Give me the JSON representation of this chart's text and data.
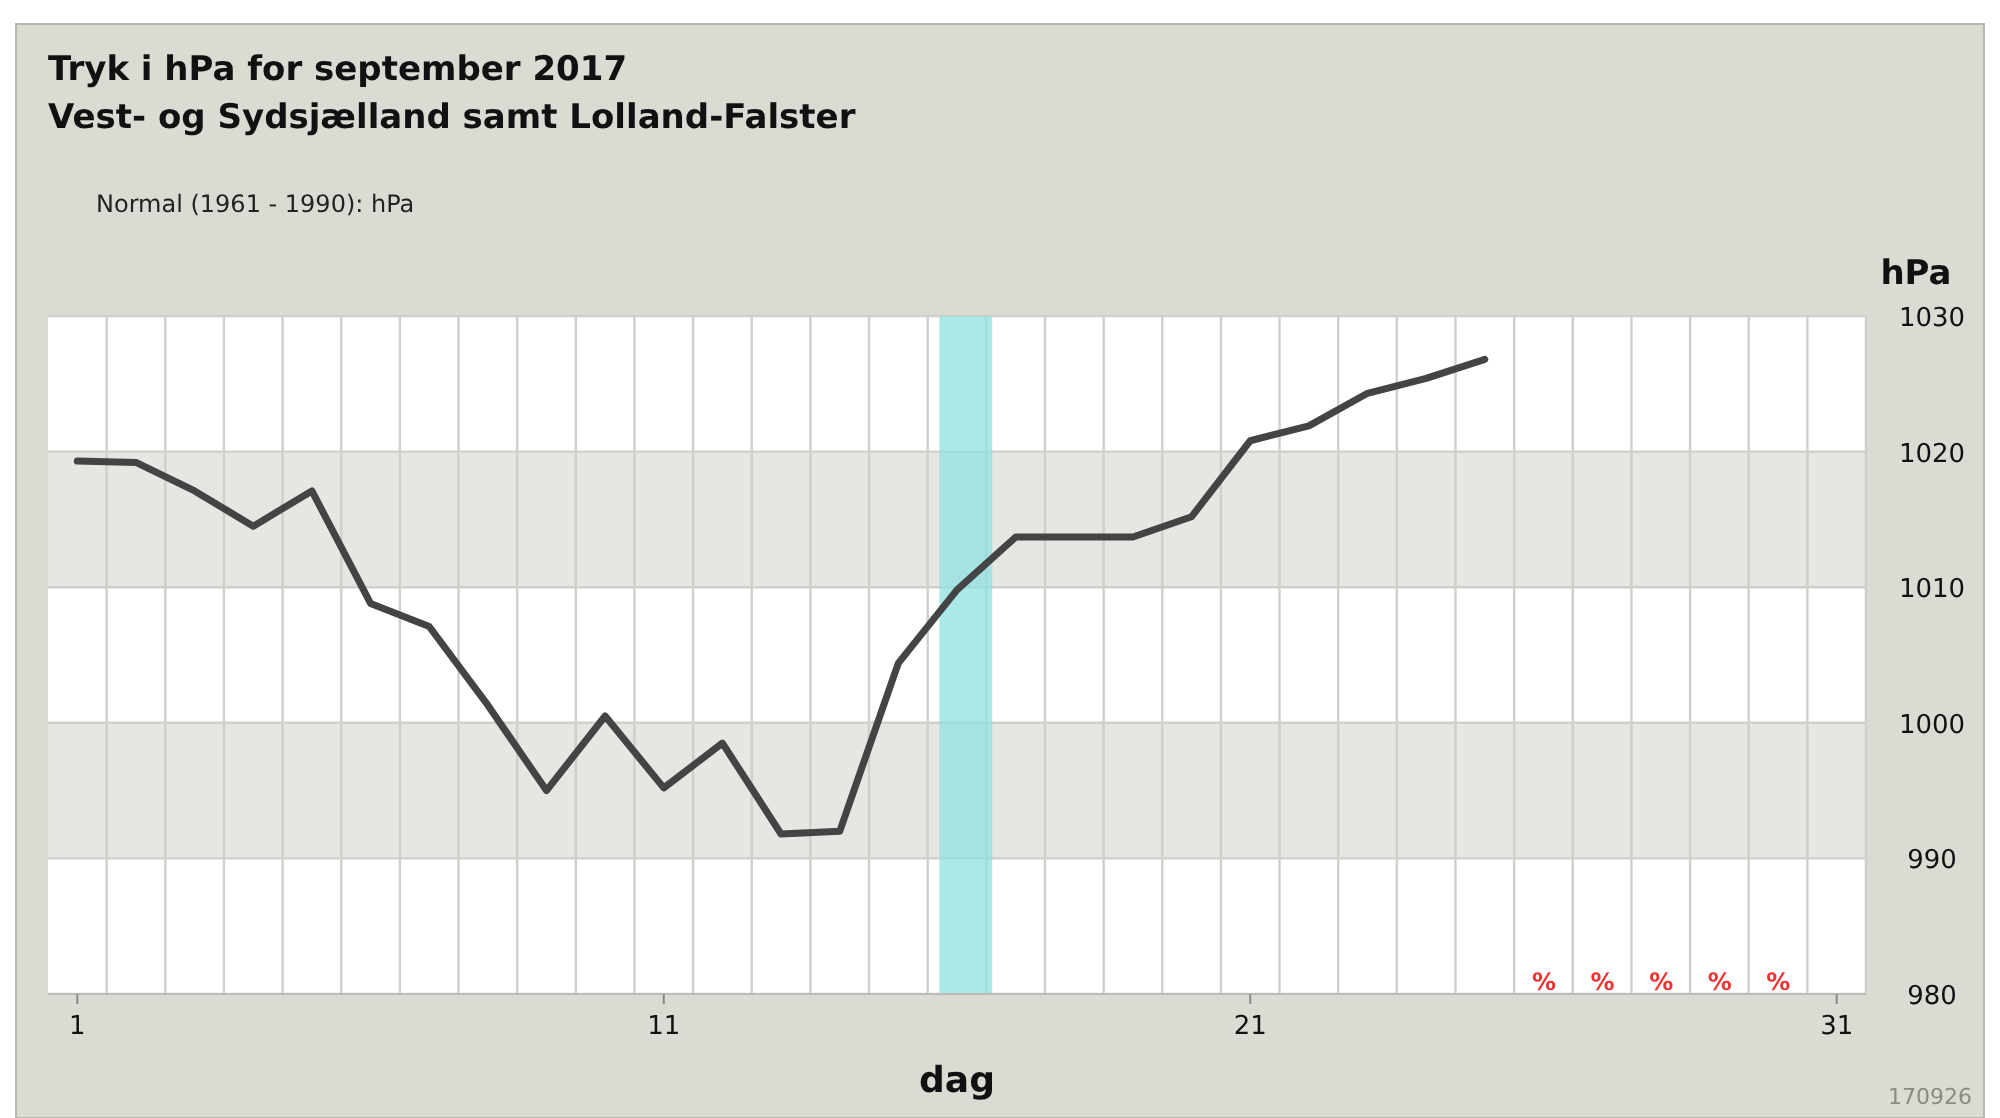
{
  "chart_data": {
    "type": "line",
    "title": "Tryk i hPa for september 2017",
    "subtitle": "Vest- og Sydsjælland samt Lolland-Falster",
    "xlabel": "dag",
    "ylabel": "hPa",
    "x": [
      1,
      2,
      3,
      4,
      5,
      6,
      7,
      8,
      9,
      10,
      11,
      12,
      13,
      14,
      15,
      16,
      17,
      18,
      19,
      20,
      21,
      22,
      23,
      24,
      25
    ],
    "series": [
      {
        "color": "#444444",
        "values": [
          1019.3,
          1019.2,
          1017.1,
          1014.5,
          1017.1,
          1008.8,
          1007.1,
          1001.3,
          995.0,
          1000.5,
          995.2,
          998.5,
          991.8,
          992.0,
          1004.4,
          1009.8,
          1013.7,
          1013.7,
          1013.7,
          1015.2,
          1020.8,
          1021.9,
          1024.3,
          1025.4,
          1026.8
        ]
      }
    ],
    "xlim": [
      0.5,
      31.5
    ],
    "xticks": [
      1,
      11,
      21,
      31
    ],
    "ylim": [
      980,
      1030
    ],
    "yticks": [
      980,
      990,
      1000,
      1010,
      1020,
      1030
    ],
    "grid": true,
    "marker": "none",
    "line_style": "solid",
    "bands": [
      {
        "axis": "y",
        "from": 990,
        "to": 1000,
        "color": "#e5e7e3"
      },
      {
        "axis": "y",
        "from": 1010,
        "to": 1020,
        "color": "#e5e7e3"
      },
      {
        "axis": "x",
        "from": 15.7,
        "to": 16.6,
        "color": "#8fe0e0"
      }
    ],
    "annotations": [
      "Normal (1961 - 1990):  hPa",
      "%",
      "%",
      "%",
      "%",
      "%",
      "170926"
    ]
  }
}
